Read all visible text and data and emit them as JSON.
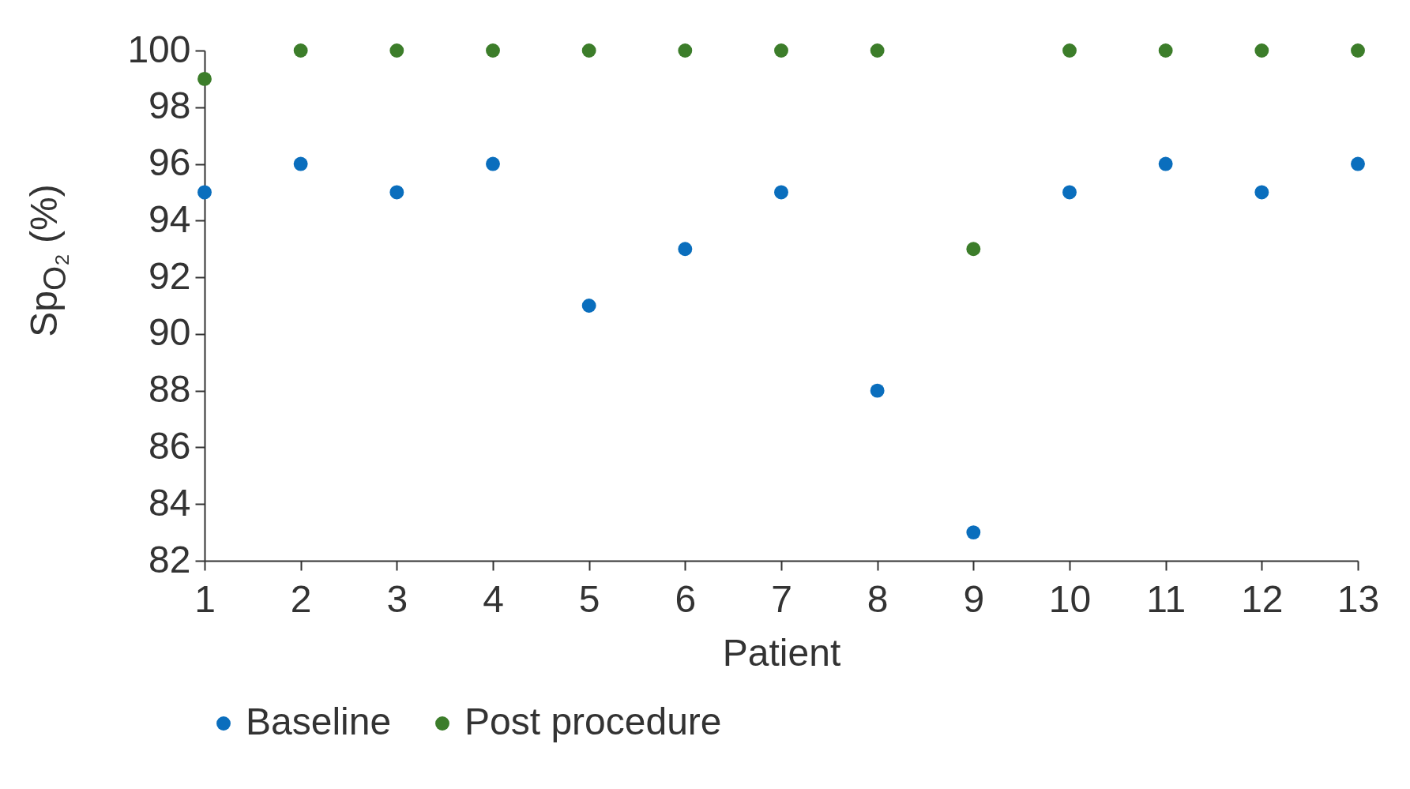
{
  "chart_data": {
    "type": "scatter",
    "xlabel": "Patient",
    "ylabel": "Sp$_{O₂}$ (%)",
    "x": [
      1,
      2,
      3,
      4,
      5,
      6,
      7,
      8,
      9,
      10,
      11,
      12,
      13
    ],
    "series": [
      {
        "name": "Baseline",
        "color": "#0a6ebd",
        "values": [
          95,
          96,
          95,
          96,
          91,
          93,
          95,
          88,
          83,
          95,
          96,
          95,
          96
        ]
      },
      {
        "name": "Post procedure",
        "color": "#3c7d2a",
        "values": [
          99,
          100,
          100,
          100,
          100,
          100,
          100,
          100,
          93,
          100,
          100,
          100,
          100
        ]
      }
    ],
    "xlim": [
      1,
      13
    ],
    "xticks": [
      1,
      2,
      3,
      4,
      5,
      6,
      7,
      8,
      9,
      10,
      11,
      12,
      13
    ],
    "ylim": [
      82,
      100
    ],
    "yticks": [
      82,
      84,
      86,
      88,
      90,
      92,
      94,
      96,
      98,
      100
    ],
    "marker": "circle",
    "legend": "bottom"
  }
}
